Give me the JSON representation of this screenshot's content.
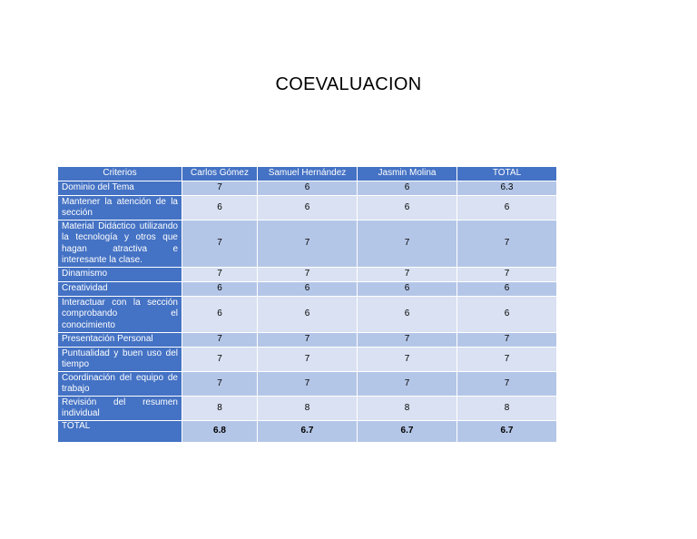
{
  "title": "COEVALUACION",
  "table": {
    "headers": [
      "Criterios",
      "Carlos Gómez",
      "Samuel  Hernández",
      "Jasmin Molina",
      "TOTAL"
    ],
    "rows": [
      {
        "criterion": "Dominio del Tema",
        "values": [
          "7",
          "6",
          "6",
          "6.3"
        ]
      },
      {
        "criterion": "Mantener la atención de la sección",
        "values": [
          "6",
          "6",
          "6",
          "6"
        ]
      },
      {
        "criterion": "Material Didáctico utilizando la tecnología y otros que hagan atractiva e interesante la clase.",
        "values": [
          "7",
          "7",
          "7",
          "7"
        ]
      },
      {
        "criterion": "Dinamismo",
        "values": [
          "7",
          "7",
          "7",
          "7"
        ]
      },
      {
        "criterion": "Creatividad",
        "values": [
          "6",
          "6",
          "6",
          "6"
        ]
      },
      {
        "criterion": "Interactuar con la sección comprobando el conocimiento",
        "values": [
          "6",
          "6",
          "6",
          "6"
        ]
      },
      {
        "criterion": "Presentación Personal",
        "values": [
          "7",
          "7",
          "7",
          "7"
        ]
      },
      {
        "criterion": "Puntualidad y buen uso del tiempo",
        "values": [
          "7",
          "7",
          "7",
          "7"
        ]
      },
      {
        "criterion": "Coordinación del equipo de trabajo",
        "values": [
          "7",
          "7",
          "7",
          "7"
        ]
      },
      {
        "criterion": "Revisión del resumen individual",
        "values": [
          "8",
          "8",
          "8",
          "8"
        ]
      }
    ],
    "total": {
      "label": "TOTAL",
      "values": [
        "6.8",
        "6.7",
        "6.7",
        "6.7"
      ]
    }
  },
  "colors": {
    "header": "#4472c4",
    "row_light": "#d9e1f2",
    "row_dark": "#b4c6e7"
  }
}
